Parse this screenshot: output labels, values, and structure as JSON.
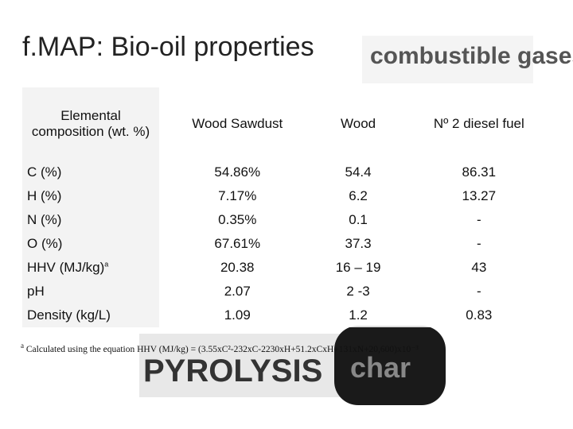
{
  "title": "f.MAP: Bio-oil properties",
  "image_texts": [
    "combustible gases",
    "PYROLYSIS",
    "char"
  ],
  "footnote_marker": "a",
  "table": {
    "header": [
      "Elemental composition (wt. %)",
      "Wood Sawdust",
      "Wood",
      "Nº 2 diesel fuel"
    ],
    "rows": [
      [
        "C (%)",
        "54.86%",
        "54.4",
        "86.31"
      ],
      [
        "H (%)",
        "7.17%",
        "6.2",
        "13.27"
      ],
      [
        "N (%)",
        "0.35%",
        "0.1",
        "-"
      ],
      [
        "O (%)",
        "67.61%",
        "37.3",
        "-"
      ],
      [
        "HHV (MJ/kg)",
        "20.38",
        "16 – 19",
        "43"
      ],
      [
        "pH",
        "2.07",
        "2 -3",
        "-"
      ],
      [
        "Density (kg/L)",
        "1.09",
        "1.2",
        "0.83"
      ]
    ]
  },
  "footnote": "Calculated using the equation HHV (MJ/kg) = (3.55xC²-232xC-2230xH+51.2xCxH+131xN+20,600)x10⁻³"
}
